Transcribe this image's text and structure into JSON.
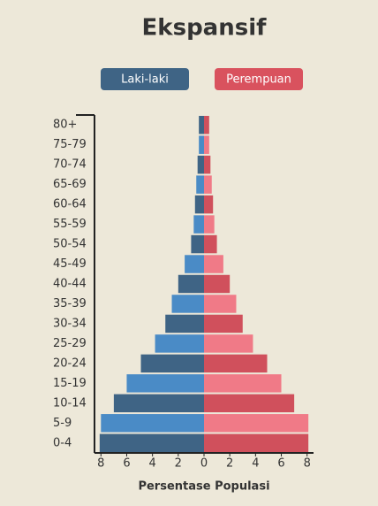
{
  "chart_data": {
    "type": "pyramid",
    "title": "Ekspansif",
    "xlabel": "Persentase Populasi",
    "categories": [
      "0-4",
      "5-9",
      "10-14",
      "15-19",
      "20-24",
      "25-29",
      "30-34",
      "35-39",
      "40-44",
      "45-49",
      "50-54",
      "55-59",
      "60-64",
      "65-69",
      "70-74",
      "75-79",
      "80+"
    ],
    "series": [
      {
        "name": "Laki-laki",
        "color": "#3f6485",
        "colors": [
          "#3f6485",
          "#4a8bc6"
        ],
        "values": [
          8.1,
          8.0,
          7.0,
          6.0,
          4.9,
          3.8,
          3.0,
          2.5,
          2.0,
          1.5,
          1.0,
          0.8,
          0.7,
          0.6,
          0.5,
          0.4,
          0.4
        ]
      },
      {
        "name": "Perempuan",
        "color": "#d9525e",
        "colors": [
          "#d0505c",
          "#f07a87"
        ],
        "values": [
          8.1,
          8.1,
          7.0,
          6.0,
          4.9,
          3.8,
          3.0,
          2.5,
          2.0,
          1.5,
          1.0,
          0.8,
          0.7,
          0.6,
          0.5,
          0.4,
          0.4
        ]
      }
    ],
    "xlim": [
      -8.5,
      8.5
    ],
    "xticks": [
      {
        "value": -8,
        "label": "8"
      },
      {
        "value": -6,
        "label": "6"
      },
      {
        "value": -4,
        "label": "4"
      },
      {
        "value": -2,
        "label": "2"
      },
      0,
      2,
      4,
      6,
      8
    ]
  }
}
